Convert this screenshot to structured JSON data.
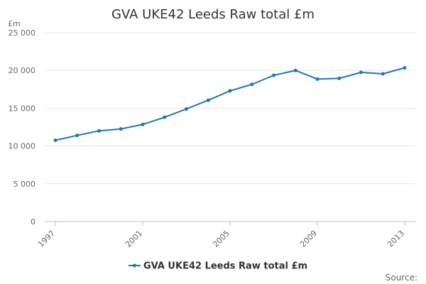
{
  "chart_data": {
    "type": "line",
    "title": "GVA UKE42 Leeds Raw total £m",
    "ylabel": "£m",
    "xlabel": "",
    "ylim": [
      0,
      25000
    ],
    "yticks": [
      {
        "value": 0,
        "label": "0"
      },
      {
        "value": 5000,
        "label": "5 000"
      },
      {
        "value": 10000,
        "label": "10 000"
      },
      {
        "value": 15000,
        "label": "15 000"
      },
      {
        "value": 20000,
        "label": "20 000"
      },
      {
        "value": 25000,
        "label": "25 000"
      }
    ],
    "xlim": [
      1997,
      2013
    ],
    "xticks": [
      {
        "value": 1997,
        "label": "1997"
      },
      {
        "value": 2001,
        "label": "2001"
      },
      {
        "value": 2005,
        "label": "2005"
      },
      {
        "value": 2009,
        "label": "2009"
      },
      {
        "value": 2013,
        "label": "2013"
      }
    ],
    "series": [
      {
        "name": "GVA UKE42 Leeds Raw total £m",
        "color": "#1f77b4",
        "x": [
          1997,
          1998,
          1999,
          2000,
          2001,
          2002,
          2003,
          2004,
          2005,
          2006,
          2007,
          2008,
          2009,
          2010,
          2011,
          2012,
          2013
        ],
        "values": [
          10750,
          11400,
          12000,
          12250,
          12850,
          13800,
          14900,
          16050,
          17300,
          18150,
          19350,
          20000,
          18850,
          18950,
          19750,
          19550,
          20350
        ]
      }
    ],
    "grid": true,
    "legend_position": "bottom-center"
  },
  "source_label": "Source:"
}
